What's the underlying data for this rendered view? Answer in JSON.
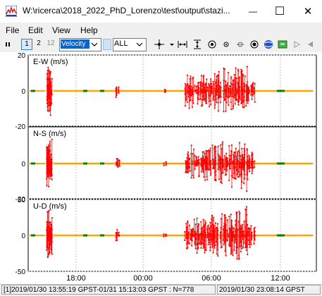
{
  "window": {
    "title": "W:\\ricerca\\2018_2022_PhD_Lorenzo\\test\\output\\stazi...",
    "minimize_glyph": "—",
    "maximize_glyph": "☐",
    "close_glyph": "✕"
  },
  "menu": {
    "items": [
      "File",
      "Edit",
      "View",
      "Help"
    ]
  },
  "toolbar": {
    "frequency_buttons": [
      "1",
      "2",
      "12"
    ],
    "type_combo_value": "Velocity",
    "sat_combo_value": "ALL"
  },
  "plot": {
    "panels": [
      {
        "label": "E-W (m/s)",
        "yticks": [
          "20",
          "0",
          "-20"
        ]
      },
      {
        "label": "N-S (m/s)",
        "yticks": [
          "0",
          "-20"
        ]
      },
      {
        "label": "U-D (m/s)",
        "yticks": [
          "50",
          "0",
          "-50"
        ]
      }
    ],
    "xticks": [
      "18:00",
      "00:00",
      "06:00",
      "12:00"
    ],
    "colors": {
      "fix": "#ffa500",
      "float": "#008000",
      "velocity": "#ff0000",
      "grid": "#c0c0c0",
      "zeroline": "#808080"
    }
  },
  "status": {
    "left": "[1]2019/01/30 13:55:19 GPST-01/31 15:13:03 GPST : N=778",
    "right": "2019/01/30 23:08:14 GPST"
  }
}
